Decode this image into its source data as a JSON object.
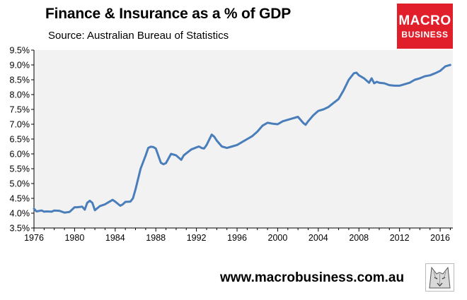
{
  "header": {
    "title": "Finance & Insurance as a % of GDP",
    "subtitle": "Source: Australian Bureau of Statistics"
  },
  "logo": {
    "line1": "MACRO",
    "line2": "BUSINESS",
    "color": "#e01f2a"
  },
  "footer": {
    "url": "www.macrobusiness.com.au",
    "icon": "wolf-logo-icon"
  },
  "chart_data": {
    "type": "line",
    "title": "Finance & Insurance as a % of GDP",
    "xlabel": "",
    "ylabel": "",
    "xlim": [
      1976,
      2017.25
    ],
    "ylim": [
      3.5,
      9.5
    ],
    "x_ticks": [
      "1976",
      "1980",
      "1984",
      "1988",
      "1992",
      "1996",
      "2000",
      "2004",
      "2008",
      "2012",
      "2016"
    ],
    "y_ticks": [
      "3.5%",
      "4.0%",
      "4.5%",
      "5.0%",
      "5.5%",
      "6.0%",
      "6.5%",
      "7.0%",
      "7.5%",
      "8.0%",
      "8.5%",
      "9.0%",
      "9.5%"
    ],
    "grid": false,
    "plot_background": "#f2f2f2",
    "line_color": "#4a7ebb",
    "series": [
      {
        "x": [
          1976.0,
          1976.25,
          1976.75,
          1977.0,
          1977.25,
          1977.75,
          1978.0,
          1978.5,
          1979.0,
          1979.5,
          1980.0,
          1980.25,
          1980.5,
          1980.75,
          1981.0,
          1981.25,
          1981.5,
          1981.75,
          1982.0,
          1982.5,
          1983.0,
          1983.25,
          1983.75,
          1984.0,
          1984.5,
          1984.75,
          1985.0,
          1985.5,
          1985.75,
          1986.0,
          1986.5,
          1987.0,
          1987.25,
          1987.5,
          1987.75,
          1988.0,
          1988.5,
          1988.75,
          1989.0,
          1989.5,
          1990.0,
          1990.5,
          1990.75,
          1991.0,
          1991.5,
          1992.0,
          1992.25,
          1992.5,
          1992.75,
          1993.0,
          1993.5,
          1993.75,
          1994.0,
          1994.5,
          1995.0,
          1995.5,
          1996.0,
          1996.5,
          1997.0,
          1997.5,
          1998.0,
          1998.5,
          1999.0,
          1999.5,
          2000.0,
          2000.5,
          2001.0,
          2001.5,
          2002.0,
          2002.5,
          2002.75,
          2003.0,
          2003.5,
          2004.0,
          2004.5,
          2005.0,
          2005.5,
          2006.0,
          2006.5,
          2007.0,
          2007.5,
          2007.75,
          2008.0,
          2008.5,
          2009.0,
          2009.25,
          2009.5,
          2009.75,
          2010.0,
          2010.5,
          2011.0,
          2011.5,
          2012.0,
          2012.5,
          2013.0,
          2013.5,
          2014.0,
          2014.5,
          2015.0,
          2015.5,
          2016.0,
          2016.5,
          2017.0
        ],
        "values": [
          4.15,
          4.06,
          4.09,
          4.05,
          4.06,
          4.05,
          4.09,
          4.08,
          4.02,
          4.04,
          4.2,
          4.2,
          4.21,
          4.22,
          4.12,
          4.35,
          4.42,
          4.35,
          4.1,
          4.24,
          4.3,
          4.35,
          4.45,
          4.39,
          4.25,
          4.3,
          4.38,
          4.39,
          4.5,
          4.8,
          5.5,
          5.95,
          6.2,
          6.24,
          6.23,
          6.18,
          5.7,
          5.65,
          5.69,
          6.0,
          5.95,
          5.8,
          5.95,
          6.02,
          6.15,
          6.22,
          6.25,
          6.2,
          6.18,
          6.3,
          6.65,
          6.58,
          6.45,
          6.25,
          6.2,
          6.25,
          6.3,
          6.4,
          6.5,
          6.6,
          6.75,
          6.95,
          7.05,
          7.02,
          7.0,
          7.1,
          7.15,
          7.2,
          7.25,
          7.05,
          6.98,
          7.1,
          7.3,
          7.45,
          7.5,
          7.58,
          7.72,
          7.85,
          8.15,
          8.5,
          8.72,
          8.74,
          8.65,
          8.55,
          8.4,
          8.55,
          8.38,
          8.43,
          8.4,
          8.38,
          8.32,
          8.3,
          8.3,
          8.35,
          8.4,
          8.5,
          8.55,
          8.62,
          8.65,
          8.72,
          8.8,
          8.95,
          9.0
        ]
      }
    ]
  }
}
